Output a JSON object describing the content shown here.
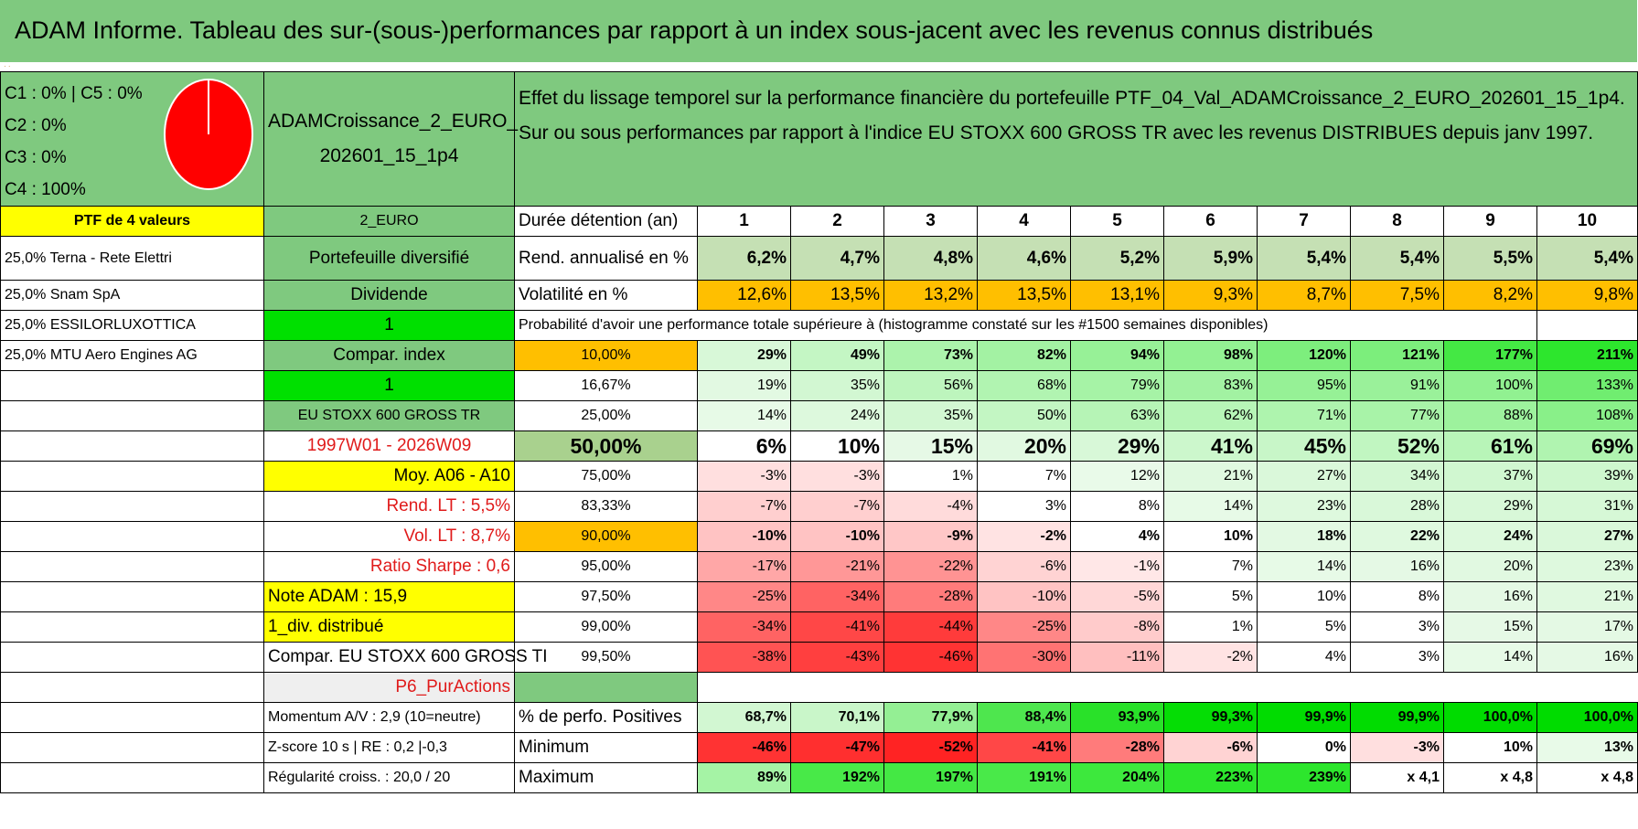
{
  "title": "ADAM Informe. Tableau des sur-(sous-)performances par rapport à un index sous-jacent avec les revenus connus distribués",
  "header": {
    "allocation_lines": [
      "C1 : 0% | C5 : 0%",
      "C2 : 0%",
      "C3 : 0%",
      "C4 : 100%"
    ],
    "fund_name_line1": "ADAMCroissance_2_EURO_",
    "fund_name_line2": "202601_15_1p4",
    "effect_line1": "Effet du lissage temporel sur la performance financière du portefeuille PTF_04_Val_ADAMCroissance_2_EURO_202601_15_1p4.",
    "effect_line2": "Sur ou sous performances par rapport à l'indice EU STOXX 600 GROSS TR avec les revenus DISTRIBUES depuis janv 1997."
  },
  "pie": {
    "C4": 100,
    "colors": {
      "fill": "#ff0000",
      "stroke": "#ffffff"
    }
  },
  "colors": {
    "title_bg": "#7fc97f",
    "yellow": "#ffff00",
    "orange": "#ffbf00",
    "bright_green": "#00e000",
    "red_text": "#e01b1b"
  },
  "col1": {
    "ptf_label": "PTF de 4 valeurs",
    "holdings": [
      "25,0% Terna - Rete Elettri",
      "25,0% Snam SpA",
      "25,0% ESSILORLUXOTTICA",
      "25,0% MTU Aero Engines AG"
    ]
  },
  "col2": {
    "code": "2_EURO",
    "portfolio": "Portefeuille diversifié",
    "dividend_label": "Dividende",
    "dividend_value": "1",
    "compar_index": "Compar. index",
    "compar_value": "1",
    "index_name": "EU STOXX 600 GROSS TR",
    "period": "1997W01 - 2026W09",
    "moy": "Moy. A06 - A10",
    "rend_lt": "Rend. LT : 5,5%",
    "vol_lt": "Vol. LT : 8,7%",
    "sharpe": "Ratio Sharpe : 0,6",
    "note": "Note ADAM : 15,9",
    "div_distrib": "1_div. distribué",
    "compar_full": "Compar. EU STOXX 600 GROSS TI",
    "p6": "P6_PurActions",
    "momentum": "Momentum A/V : 2,9 (10=neutre)",
    "zscore": "Z-score 10 s | RE : 0,2 |-0,3",
    "regularite": "Régularité croiss. : 20,0 / 20"
  },
  "table": {
    "duration_label": "Durée détention (an)",
    "years": [
      "1",
      "2",
      "3",
      "4",
      "5",
      "6",
      "7",
      "8",
      "9",
      "10"
    ],
    "rend_label": "Rend. annualisé en %",
    "rend": [
      "6,2%",
      "4,7%",
      "4,8%",
      "4,6%",
      "5,2%",
      "5,9%",
      "5,4%",
      "5,4%",
      "5,5%",
      "5,4%"
    ],
    "vol_label": "Volatilité en %",
    "vol": [
      "12,6%",
      "13,5%",
      "13,2%",
      "13,5%",
      "13,1%",
      "9,3%",
      "8,7%",
      "7,5%",
      "8,2%",
      "9,8%"
    ],
    "prob_label": "Probabilité d'avoir une performance totale supérieure à (histogramme constaté sur les #1500 semaines disponibles)",
    "quantiles": [
      {
        "q": "10,00%",
        "values": [
          "29%",
          "49%",
          "73%",
          "82%",
          "94%",
          "98%",
          "120%",
          "121%",
          "177%",
          "211%"
        ]
      },
      {
        "q": "16,67%",
        "values": [
          "19%",
          "35%",
          "56%",
          "68%",
          "79%",
          "83%",
          "95%",
          "91%",
          "100%",
          "133%"
        ]
      },
      {
        "q": "25,00%",
        "values": [
          "14%",
          "24%",
          "35%",
          "50%",
          "63%",
          "62%",
          "71%",
          "77%",
          "88%",
          "108%"
        ]
      },
      {
        "q": "50,00%",
        "values": [
          "6%",
          "10%",
          "15%",
          "20%",
          "29%",
          "41%",
          "45%",
          "52%",
          "61%",
          "69%"
        ]
      },
      {
        "q": "75,00%",
        "values": [
          "-3%",
          "-3%",
          "1%",
          "7%",
          "12%",
          "21%",
          "27%",
          "34%",
          "37%",
          "39%"
        ]
      },
      {
        "q": "83,33%",
        "values": [
          "-7%",
          "-7%",
          "-4%",
          "3%",
          "8%",
          "14%",
          "23%",
          "28%",
          "29%",
          "31%"
        ]
      },
      {
        "q": "90,00%",
        "values": [
          "-10%",
          "-10%",
          "-9%",
          "-2%",
          "4%",
          "10%",
          "18%",
          "22%",
          "24%",
          "27%"
        ]
      },
      {
        "q": "95,00%",
        "values": [
          "-17%",
          "-21%",
          "-22%",
          "-6%",
          "-1%",
          "7%",
          "14%",
          "16%",
          "20%",
          "23%"
        ]
      },
      {
        "q": "97,50%",
        "values": [
          "-25%",
          "-34%",
          "-28%",
          "-10%",
          "-5%",
          "5%",
          "10%",
          "8%",
          "16%",
          "21%"
        ]
      },
      {
        "q": "99,00%",
        "values": [
          "-34%",
          "-41%",
          "-44%",
          "-25%",
          "-8%",
          "1%",
          "5%",
          "3%",
          "15%",
          "17%"
        ]
      },
      {
        "q": "99,50%",
        "values": [
          "-38%",
          "-43%",
          "-46%",
          "-30%",
          "-11%",
          "-2%",
          "4%",
          "3%",
          "14%",
          "16%"
        ]
      }
    ],
    "positives_label": "% de perfo. Positives",
    "positives": [
      "68,7%",
      "70,1%",
      "77,9%",
      "88,4%",
      "93,9%",
      "99,3%",
      "99,9%",
      "99,9%",
      "100,0%",
      "100,0%"
    ],
    "min_label": "Minimum",
    "minimum": [
      "-46%",
      "-47%",
      "-52%",
      "-41%",
      "-28%",
      "-6%",
      "0%",
      "-3%",
      "10%",
      "13%"
    ],
    "max_label": "Maximum",
    "maximum": [
      "89%",
      "192%",
      "197%",
      "191%",
      "204%",
      "223%",
      "239%",
      "x 4,1",
      "x 4,8",
      "x 4,8"
    ]
  }
}
